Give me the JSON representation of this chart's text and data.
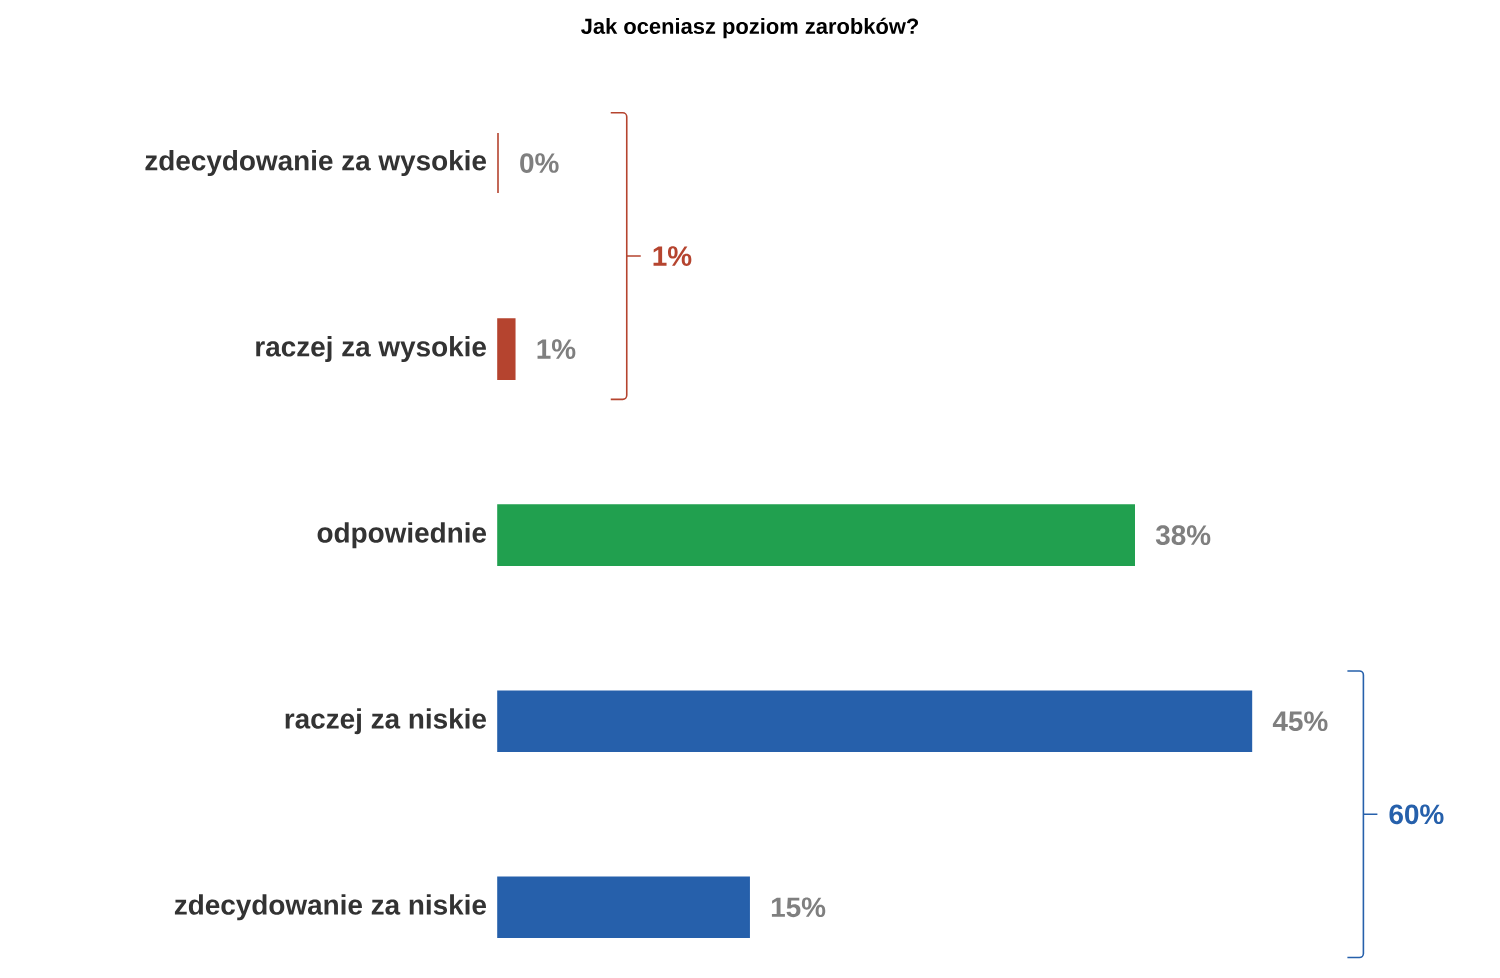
{
  "chart_data": {
    "type": "bar",
    "orientation": "horizontal",
    "title": "Jak oceniasz poziom zarobków?",
    "categories": [
      "zdecydowanie za wysokie",
      "raczej za wysokie",
      "odpowiednie",
      "raczej za niskie",
      "zdecydowanie za niskie"
    ],
    "values": [
      0,
      1,
      38,
      45,
      15
    ],
    "colors": [
      "#b5442f",
      "#b5442f",
      "#21a04f",
      "#2660ab",
      "#2660ab"
    ],
    "value_labels": [
      "0%",
      "1%",
      "38%",
      "45%",
      "15%"
    ],
    "annotations": [
      "1%",
      "60%"
    ]
  }
}
